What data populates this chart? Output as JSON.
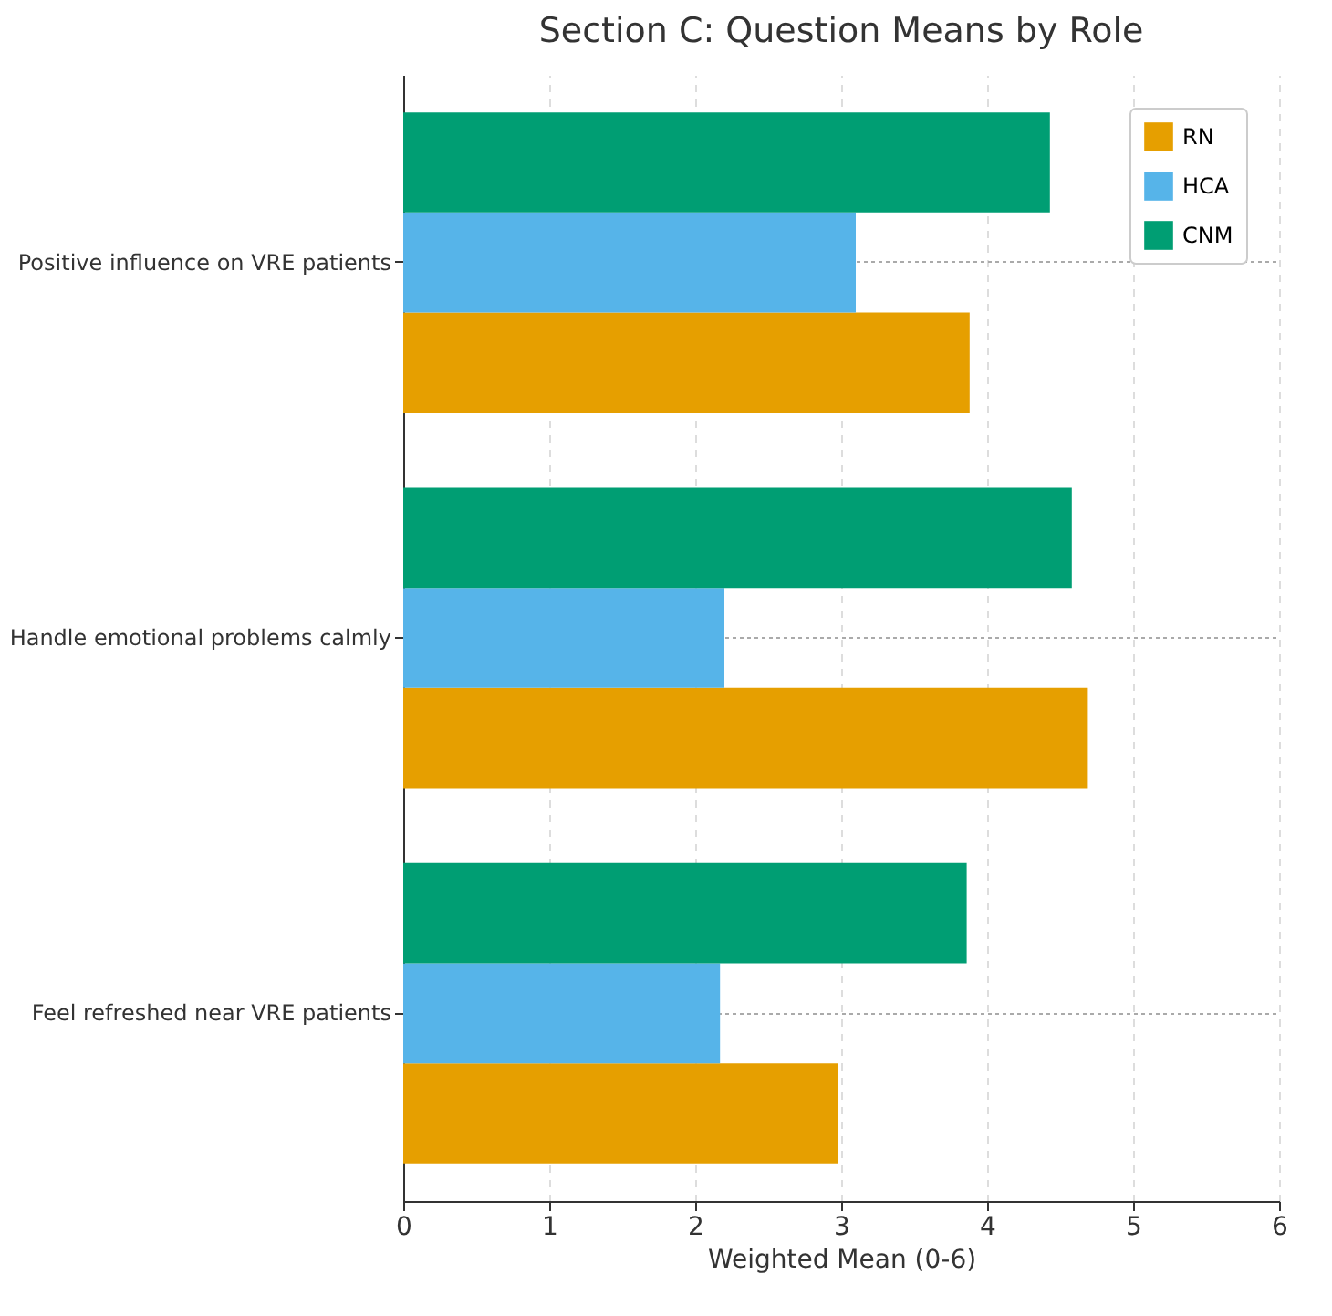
{
  "chart_data": {
    "type": "bar",
    "orientation": "horizontal",
    "title": "Section C: Question Means by Role",
    "xlabel": "Weighted Mean (0-6)",
    "categories": [
      "Positive influence on VRE patients",
      "Handle emotional problems calmly",
      "Feel refreshed near VRE patients"
    ],
    "series": [
      {
        "name": "RN",
        "color": "#e69f00",
        "values": [
          3.88,
          4.69,
          2.98
        ]
      },
      {
        "name": "HCA",
        "color": "#56b4e9",
        "values": [
          3.1,
          2.2,
          2.17
        ]
      },
      {
        "name": "CNM",
        "color": "#009e73",
        "values": [
          4.43,
          4.58,
          3.86
        ]
      }
    ],
    "xlim": [
      0,
      6
    ],
    "xticks": [
      0,
      1,
      2,
      3,
      4,
      5,
      6
    ],
    "grid": true,
    "legend": "top right"
  }
}
